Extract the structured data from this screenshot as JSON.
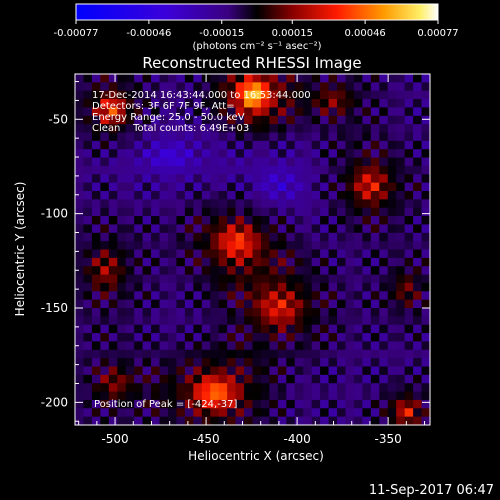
{
  "chart_data": {
    "type": "heatmap",
    "title": "Reconstructed RHESSI Image",
    "xlabel": "Heliocentric X (arcsec)",
    "ylabel": "Heliocentric Y (arcsec)",
    "xlim": [
      -522,
      -327
    ],
    "ylim": [
      -212,
      -26
    ],
    "x_ticks": [
      -500,
      -450,
      -400,
      -350
    ],
    "y_ticks": [
      -50,
      -100,
      -150,
      -200
    ],
    "colorbar": {
      "ticks": [
        "-0.00077",
        "-0.00046",
        "-0.00015",
        "0.00015",
        "0.00046",
        "0.00077"
      ],
      "range": [
        -0.00077,
        0.00077
      ],
      "unit_label": "(photons cm⁻² s⁻¹ asec⁻²)"
    },
    "annotations": [
      "17-Dec-2014 16:43:44.000 to 16:53:44.000",
      "Detectors: 3F 6F 7F 9F, Att=",
      "Energy Range: 25.0 - 50.0 keV",
      "Clean    Total counts: 6.49E+03"
    ],
    "peak_label": "Position of Peak = [-424,-37]",
    "peak": {
      "x": -424,
      "y": -37
    },
    "blobs": [
      {
        "x": -424,
        "y": -37,
        "sx": 12,
        "sy": 11,
        "amp": 0.00077
      },
      {
        "x": -502,
        "y": -45,
        "sx": 10,
        "sy": 10,
        "amp": 0.0005
      },
      {
        "x": -433,
        "y": -115,
        "sx": 16,
        "sy": 13,
        "amp": 0.00048
      },
      {
        "x": -410,
        "y": -150,
        "sx": 17,
        "sy": 14,
        "amp": 0.0004
      },
      {
        "x": -445,
        "y": -195,
        "sx": 16,
        "sy": 12,
        "amp": 0.00058
      },
      {
        "x": -360,
        "y": -85,
        "sx": 13,
        "sy": 13,
        "amp": 0.0004
      },
      {
        "x": -340,
        "y": -205,
        "sx": 8,
        "sy": 8,
        "amp": 0.00042
      },
      {
        "x": -505,
        "y": -130,
        "sx": 12,
        "sy": 15,
        "amp": 0.00028
      },
      {
        "x": -500,
        "y": -190,
        "sx": 13,
        "sy": 12,
        "amp": 0.00025
      },
      {
        "x": -380,
        "y": -40,
        "sx": 14,
        "sy": 10,
        "amp": 0.00025
      },
      {
        "x": -340,
        "y": -140,
        "sx": 10,
        "sy": 12,
        "amp": 0.00022
      },
      {
        "x": -470,
        "y": -70,
        "sx": 18,
        "sy": 10,
        "amp": -0.00025
      },
      {
        "x": -410,
        "y": -85,
        "sx": 16,
        "sy": 12,
        "amp": -0.00022
      }
    ]
  },
  "footer": {
    "timestamp": "11-Sep-2017 06:47"
  }
}
